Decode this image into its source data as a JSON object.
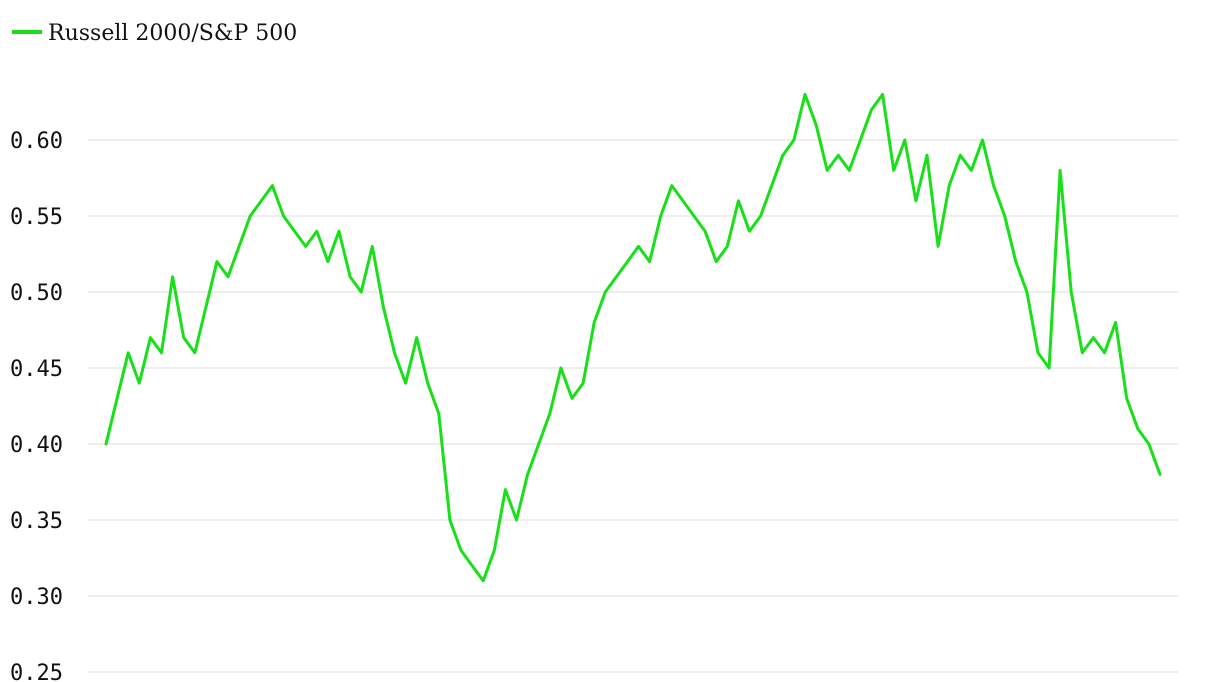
{
  "chart_data": {
    "type": "line",
    "title": "",
    "xlabel": "",
    "ylabel": "",
    "legend_position": "top-left",
    "grid": true,
    "ylim": [
      0.25,
      0.65
    ],
    "yticks": [
      {
        "value": 0.6,
        "label": "0.60"
      },
      {
        "value": 0.55,
        "label": "0.55"
      },
      {
        "value": 0.5,
        "label": "0.50"
      },
      {
        "value": 0.45,
        "label": "0.45"
      },
      {
        "value": 0.4,
        "label": "0.40"
      },
      {
        "value": 0.35,
        "label": "0.35"
      },
      {
        "value": 0.3,
        "label": "0.30"
      },
      {
        "value": 0.25,
        "label": "0.25"
      }
    ],
    "series": [
      {
        "name": "Russell 2000/S&P 500",
        "color": "#18e018",
        "values": [
          0.4,
          0.43,
          0.46,
          0.44,
          0.47,
          0.46,
          0.51,
          0.47,
          0.46,
          0.49,
          0.52,
          0.51,
          0.53,
          0.55,
          0.56,
          0.57,
          0.55,
          0.54,
          0.53,
          0.54,
          0.52,
          0.54,
          0.51,
          0.5,
          0.53,
          0.49,
          0.46,
          0.44,
          0.47,
          0.44,
          0.42,
          0.35,
          0.33,
          0.32,
          0.31,
          0.33,
          0.37,
          0.35,
          0.38,
          0.4,
          0.42,
          0.45,
          0.43,
          0.44,
          0.48,
          0.5,
          0.51,
          0.52,
          0.53,
          0.52,
          0.55,
          0.57,
          0.56,
          0.55,
          0.54,
          0.52,
          0.53,
          0.56,
          0.54,
          0.55,
          0.57,
          0.59,
          0.6,
          0.63,
          0.61,
          0.58,
          0.59,
          0.58,
          0.6,
          0.62,
          0.63,
          0.58,
          0.6,
          0.56,
          0.59,
          0.53,
          0.57,
          0.59,
          0.58,
          0.6,
          0.57,
          0.55,
          0.52,
          0.5,
          0.46,
          0.45,
          0.58,
          0.5,
          0.46,
          0.47,
          0.46,
          0.48,
          0.43,
          0.41,
          0.4,
          0.38
        ]
      }
    ]
  }
}
